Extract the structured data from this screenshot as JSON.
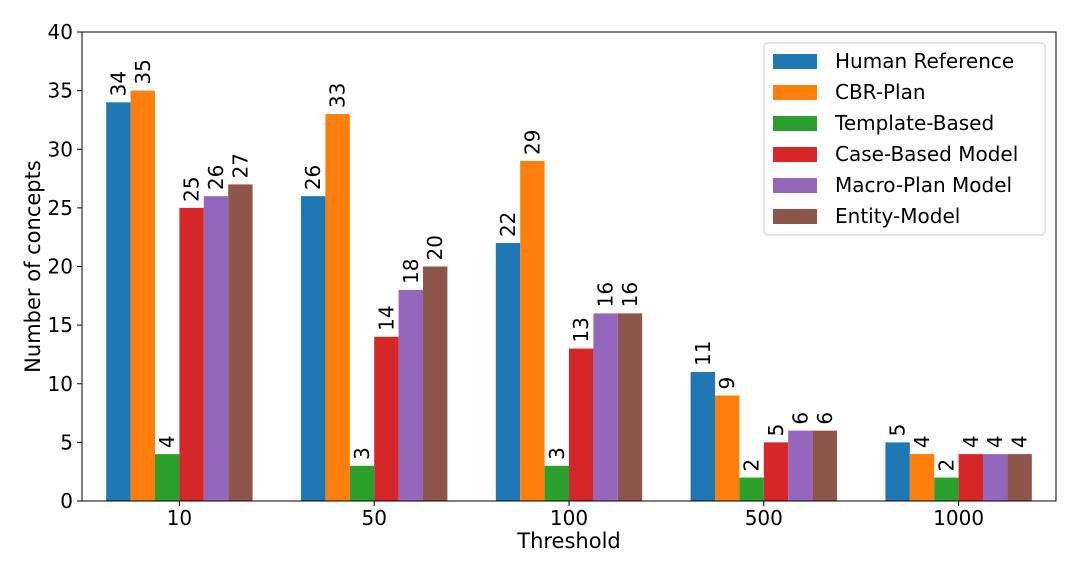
{
  "chart_data": {
    "type": "bar",
    "title": "",
    "xlabel": "Threshold",
    "ylabel": "Number of concepts",
    "categories": [
      "10",
      "50",
      "100",
      "500",
      "1000"
    ],
    "ylim": [
      0,
      40
    ],
    "yticks": [
      0,
      5,
      10,
      15,
      20,
      25,
      30,
      35,
      40
    ],
    "grid": false,
    "legend_position": "top-right",
    "series": [
      {
        "name": "Human Reference",
        "color": "#1f77b4",
        "values": [
          34,
          26,
          22,
          11,
          5
        ]
      },
      {
        "name": "CBR-Plan",
        "color": "#ff7f0e",
        "values": [
          35,
          33,
          29,
          9,
          4
        ]
      },
      {
        "name": "Template-Based",
        "color": "#2ca02c",
        "values": [
          4,
          3,
          3,
          2,
          2
        ]
      },
      {
        "name": "Case-Based Model",
        "color": "#d62728",
        "values": [
          25,
          14,
          13,
          5,
          4
        ]
      },
      {
        "name": "Macro-Plan Model",
        "color": "#9467bd",
        "values": [
          26,
          18,
          16,
          6,
          4
        ]
      },
      {
        "name": "Entity-Model",
        "color": "#8c564b",
        "values": [
          27,
          20,
          16,
          6,
          4
        ]
      }
    ]
  }
}
